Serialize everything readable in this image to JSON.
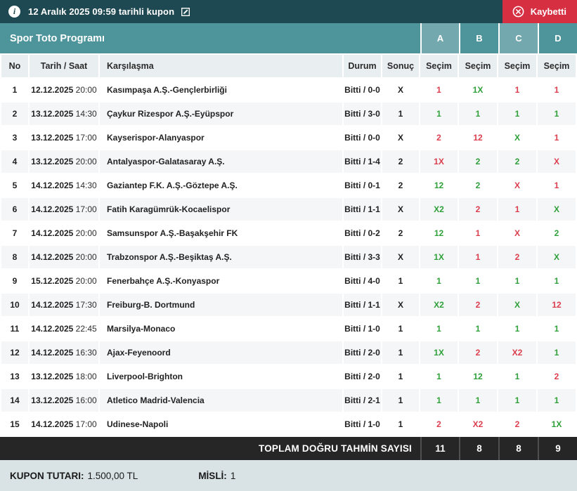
{
  "topbar": {
    "info_icon": "i",
    "title": "12 Aralık 2025 09:59 tarihli kupon",
    "status": {
      "label": "Kaybetti"
    }
  },
  "program": {
    "title": "Spor Toto Programı",
    "columns": [
      {
        "label": "A",
        "highlighted": true
      },
      {
        "label": "B",
        "highlighted": false
      },
      {
        "label": "C",
        "highlighted": true
      },
      {
        "label": "D",
        "highlighted": false
      }
    ]
  },
  "table": {
    "headers": {
      "no": "No",
      "date": "Tarih / Saat",
      "match": "Karşılaşma",
      "status": "Durum",
      "result": "Sonuç",
      "pick": "Seçim"
    }
  },
  "rows": [
    {
      "no": "1",
      "date": "12.12.2025",
      "time": "20:00",
      "match": "Kasımpaşa A.Ş.-Gençlerbirliği",
      "status": "Bitti / 0-0",
      "result": "X",
      "picks": [
        {
          "v": "1",
          "ok": false
        },
        {
          "v": "1X",
          "ok": true
        },
        {
          "v": "1",
          "ok": false
        },
        {
          "v": "1",
          "ok": false
        }
      ]
    },
    {
      "no": "2",
      "date": "13.12.2025",
      "time": "14:30",
      "match": "Çaykur Rizespor A.Ş.-Eyüpspor",
      "status": "Bitti / 3-0",
      "result": "1",
      "picks": [
        {
          "v": "1",
          "ok": true
        },
        {
          "v": "1",
          "ok": true
        },
        {
          "v": "1",
          "ok": true
        },
        {
          "v": "1",
          "ok": true
        }
      ]
    },
    {
      "no": "3",
      "date": "13.12.2025",
      "time": "17:00",
      "match": "Kayserispor-Alanyaspor",
      "status": "Bitti / 0-0",
      "result": "X",
      "picks": [
        {
          "v": "2",
          "ok": false
        },
        {
          "v": "12",
          "ok": false
        },
        {
          "v": "X",
          "ok": true
        },
        {
          "v": "1",
          "ok": false
        }
      ]
    },
    {
      "no": "4",
      "date": "13.12.2025",
      "time": "20:00",
      "match": "Antalyaspor-Galatasaray A.Ş.",
      "status": "Bitti / 1-4",
      "result": "2",
      "picks": [
        {
          "v": "1X",
          "ok": false
        },
        {
          "v": "2",
          "ok": true
        },
        {
          "v": "2",
          "ok": true
        },
        {
          "v": "X",
          "ok": false
        }
      ]
    },
    {
      "no": "5",
      "date": "14.12.2025",
      "time": "14:30",
      "match": "Gaziantep F.K. A.Ş.-Göztepe A.Ş.",
      "status": "Bitti / 0-1",
      "result": "2",
      "picks": [
        {
          "v": "12",
          "ok": true
        },
        {
          "v": "2",
          "ok": true
        },
        {
          "v": "X",
          "ok": false
        },
        {
          "v": "1",
          "ok": false
        }
      ]
    },
    {
      "no": "6",
      "date": "14.12.2025",
      "time": "17:00",
      "match": "Fatih Karagümrük-Kocaelispor",
      "status": "Bitti / 1-1",
      "result": "X",
      "picks": [
        {
          "v": "X2",
          "ok": true
        },
        {
          "v": "2",
          "ok": false
        },
        {
          "v": "1",
          "ok": false
        },
        {
          "v": "X",
          "ok": true
        }
      ]
    },
    {
      "no": "7",
      "date": "14.12.2025",
      "time": "20:00",
      "match": "Samsunspor A.Ş.-Başakşehir FK",
      "status": "Bitti / 0-2",
      "result": "2",
      "picks": [
        {
          "v": "12",
          "ok": true
        },
        {
          "v": "1",
          "ok": false
        },
        {
          "v": "X",
          "ok": false
        },
        {
          "v": "2",
          "ok": true
        }
      ]
    },
    {
      "no": "8",
      "date": "14.12.2025",
      "time": "20:00",
      "match": "Trabzonspor A.Ş.-Beşiktaş A.Ş.",
      "status": "Bitti / 3-3",
      "result": "X",
      "picks": [
        {
          "v": "1X",
          "ok": true
        },
        {
          "v": "1",
          "ok": false
        },
        {
          "v": "2",
          "ok": false
        },
        {
          "v": "X",
          "ok": true
        }
      ]
    },
    {
      "no": "9",
      "date": "15.12.2025",
      "time": "20:00",
      "match": "Fenerbahçe A.Ş.-Konyaspor",
      "status": "Bitti / 4-0",
      "result": "1",
      "picks": [
        {
          "v": "1",
          "ok": true
        },
        {
          "v": "1",
          "ok": true
        },
        {
          "v": "1",
          "ok": true
        },
        {
          "v": "1",
          "ok": true
        }
      ]
    },
    {
      "no": "10",
      "date": "14.12.2025",
      "time": "17:30",
      "match": "Freiburg-B. Dortmund",
      "status": "Bitti / 1-1",
      "result": "X",
      "picks": [
        {
          "v": "X2",
          "ok": true
        },
        {
          "v": "2",
          "ok": false
        },
        {
          "v": "X",
          "ok": true
        },
        {
          "v": "12",
          "ok": false
        }
      ]
    },
    {
      "no": "11",
      "date": "14.12.2025",
      "time": "22:45",
      "match": "Marsilya-Monaco",
      "status": "Bitti / 1-0",
      "result": "1",
      "picks": [
        {
          "v": "1",
          "ok": true
        },
        {
          "v": "1",
          "ok": true
        },
        {
          "v": "1",
          "ok": true
        },
        {
          "v": "1",
          "ok": true
        }
      ]
    },
    {
      "no": "12",
      "date": "14.12.2025",
      "time": "16:30",
      "match": "Ajax-Feyenoord",
      "status": "Bitti / 2-0",
      "result": "1",
      "picks": [
        {
          "v": "1X",
          "ok": true
        },
        {
          "v": "2",
          "ok": false
        },
        {
          "v": "X2",
          "ok": false
        },
        {
          "v": "1",
          "ok": true
        }
      ]
    },
    {
      "no": "13",
      "date": "13.12.2025",
      "time": "18:00",
      "match": "Liverpool-Brighton",
      "status": "Bitti / 2-0",
      "result": "1",
      "picks": [
        {
          "v": "1",
          "ok": true
        },
        {
          "v": "12",
          "ok": true
        },
        {
          "v": "1",
          "ok": true
        },
        {
          "v": "2",
          "ok": false
        }
      ]
    },
    {
      "no": "14",
      "date": "13.12.2025",
      "time": "16:00",
      "match": "Atletico Madrid-Valencia",
      "status": "Bitti / 2-1",
      "result": "1",
      "picks": [
        {
          "v": "1",
          "ok": true
        },
        {
          "v": "1",
          "ok": true
        },
        {
          "v": "1",
          "ok": true
        },
        {
          "v": "1",
          "ok": true
        }
      ]
    },
    {
      "no": "15",
      "date": "14.12.2025",
      "time": "17:00",
      "match": "Udinese-Napoli",
      "status": "Bitti / 1-0",
      "result": "1",
      "picks": [
        {
          "v": "2",
          "ok": false
        },
        {
          "v": "X2",
          "ok": false
        },
        {
          "v": "2",
          "ok": false
        },
        {
          "v": "1X",
          "ok": true
        }
      ]
    }
  ],
  "totals": {
    "label": "TOPLAM DOĞRU TAHMİN SAYISI",
    "values": [
      "11",
      "8",
      "8",
      "9"
    ]
  },
  "summary": {
    "stake_label": "KUPON TUTARI:",
    "stake_value": "1.500,00 TL",
    "multiplier_label": "MİSLİ:",
    "multiplier_value": "1"
  },
  "colors": {
    "topbar": "#1E4852",
    "band": "#4E949B",
    "band_highlight": "#73A9AE",
    "correct_green": "#2FA03A",
    "wrong_red": "#DC3E4E",
    "status_red": "#D62F42",
    "totals_bar": "#262626",
    "page_bg": "#D9E3E5"
  }
}
